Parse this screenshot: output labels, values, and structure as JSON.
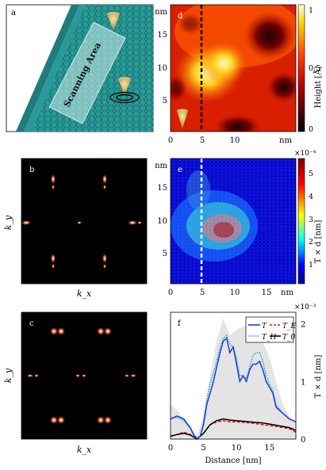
{
  "panels": {
    "a": {
      "label": "a",
      "scan_label": "Scanning Area"
    },
    "b": {
      "label": "b",
      "xlabel": "k_x",
      "ylabel": "k_y"
    },
    "c": {
      "label": "c",
      "xlabel": "k_x",
      "ylabel": "k_y"
    },
    "d": {
      "label": "d",
      "unit": "nm",
      "colorbar_label": "Height [Å]",
      "colorbar_ticks": [
        "0",
        "0.5",
        "1"
      ],
      "dashed_line_x": 5
    },
    "e": {
      "label": "e",
      "unit": "nm",
      "colorbar_label": "T × d [nm]",
      "colorbar_exponent": "×10⁻⁴",
      "colorbar_ticks": [
        "1",
        "2",
        "3",
        "4",
        "5"
      ],
      "dashed_line_x": 5
    },
    "f": {
      "label": "f",
      "xlabel": "Distance [nm]",
      "ylabel": "T × d [nm]",
      "exponent": "×10⁻³"
    }
  },
  "chart_data": [
    {
      "type": "heatmap",
      "panel": "d",
      "x_ticks": [
        "0",
        "5",
        "10",
        "nm"
      ],
      "y_ticks": [
        "5",
        "10",
        "15",
        "nm"
      ],
      "xlim": [
        0,
        19
      ],
      "ylim": [
        0,
        19
      ],
      "colorbar_range": [
        0,
        1
      ]
    },
    {
      "type": "heatmap",
      "panel": "e",
      "x_ticks": [
        "0",
        "5",
        "10",
        "15",
        "nm"
      ],
      "y_ticks": [
        "5",
        "10",
        "15",
        "nm"
      ],
      "xlim": [
        0,
        19
      ],
      "ylim": [
        0,
        19
      ],
      "colorbar_range": [
        0,
        5.5
      ]
    },
    {
      "type": "line",
      "panel": "f",
      "xlabel": "Distance [nm]",
      "ylabel": "T × d [nm]",
      "xlim": [
        0,
        19
      ],
      "ylim": [
        0,
        2.2
      ],
      "x_ticks": [
        "0",
        "5",
        "10",
        "15"
      ],
      "y_ticks": [
        "0",
        "1",
        "2"
      ],
      "series": [
        {
          "name": "T",
          "color": "#1f3fd0",
          "style": "solid",
          "x": [
            0,
            1,
            2,
            3,
            3.5,
            4,
            4.5,
            5,
            5.5,
            6,
            6.5,
            7,
            7.5,
            8,
            8.5,
            9,
            9.5,
            10,
            10.5,
            11,
            11.5,
            12,
            12.5,
            13,
            13.5,
            14,
            14.5,
            15,
            15.5,
            16,
            17,
            18,
            19
          ],
          "y": [
            0.35,
            0.4,
            0.35,
            0.2,
            0.08,
            0.01,
            0.05,
            0.25,
            0.6,
            0.8,
            1.0,
            1.25,
            1.5,
            1.7,
            1.75,
            1.5,
            1.6,
            1.3,
            1.0,
            1.1,
            1.0,
            1.2,
            1.3,
            1.3,
            1.35,
            1.2,
            1.0,
            0.9,
            0.8,
            0.55,
            0.45,
            0.35,
            0.3
          ]
        },
        {
          "name": "T_H",
          "color": "#1aa8c0",
          "style": "dotted",
          "x": [
            0,
            1,
            2,
            3,
            3.5,
            4,
            4.5,
            5,
            5.5,
            6,
            6.5,
            7,
            7.5,
            8,
            8.5,
            9,
            9.5,
            10,
            10.5,
            11,
            11.5,
            12,
            12.5,
            13,
            13.5,
            14,
            14.5,
            15,
            15.5,
            16,
            17,
            18,
            19
          ],
          "y": [
            0.35,
            0.38,
            0.32,
            0.18,
            0.06,
            0.01,
            0.05,
            0.3,
            0.7,
            0.95,
            1.15,
            1.35,
            1.6,
            1.75,
            1.8,
            1.65,
            1.6,
            1.4,
            1.1,
            1.1,
            1.05,
            1.25,
            1.45,
            1.5,
            1.5,
            1.35,
            1.1,
            0.95,
            0.85,
            0.6,
            0.45,
            0.35,
            0.3
          ]
        },
        {
          "name": "T_E",
          "color": "#e01010",
          "style": "dashed",
          "x": [
            0,
            1,
            2,
            3,
            4,
            5,
            6,
            7,
            8,
            9,
            10,
            12,
            14,
            16,
            18,
            19
          ],
          "y": [
            0.05,
            0.08,
            0.12,
            0.08,
            0.0,
            0.1,
            0.25,
            0.3,
            0.32,
            0.3,
            0.3,
            0.28,
            0.25,
            0.22,
            0.18,
            0.12
          ]
        },
        {
          "name": "T_0",
          "color": "#000000",
          "style": "solid",
          "x": [
            0,
            1,
            2,
            3,
            4,
            5,
            6,
            7,
            8,
            9,
            10,
            12,
            14,
            16,
            18,
            19
          ],
          "y": [
            0.05,
            0.08,
            0.1,
            0.07,
            0.0,
            0.1,
            0.25,
            0.32,
            0.35,
            0.33,
            0.32,
            0.3,
            0.28,
            0.24,
            0.2,
            0.15
          ]
        },
        {
          "name": "envelope",
          "color": "#e4e4e4",
          "style": "fill",
          "x": [
            0,
            1,
            2,
            3,
            4,
            5,
            6,
            7,
            8,
            9,
            10,
            11,
            12,
            13,
            14,
            15,
            16,
            17,
            18,
            19
          ],
          "y": [
            0.6,
            0.5,
            0.35,
            0.2,
            0.05,
            0.4,
            1.1,
            1.7,
            2.1,
            1.8,
            1.9,
            1.95,
            2.0,
            1.9,
            1.7,
            1.4,
            1.0,
            0.6,
            0.4,
            0.3
          ]
        }
      ],
      "legend": [
        "T",
        "T_E",
        "T_H",
        "T_0"
      ],
      "legend_position": "top-right"
    }
  ]
}
